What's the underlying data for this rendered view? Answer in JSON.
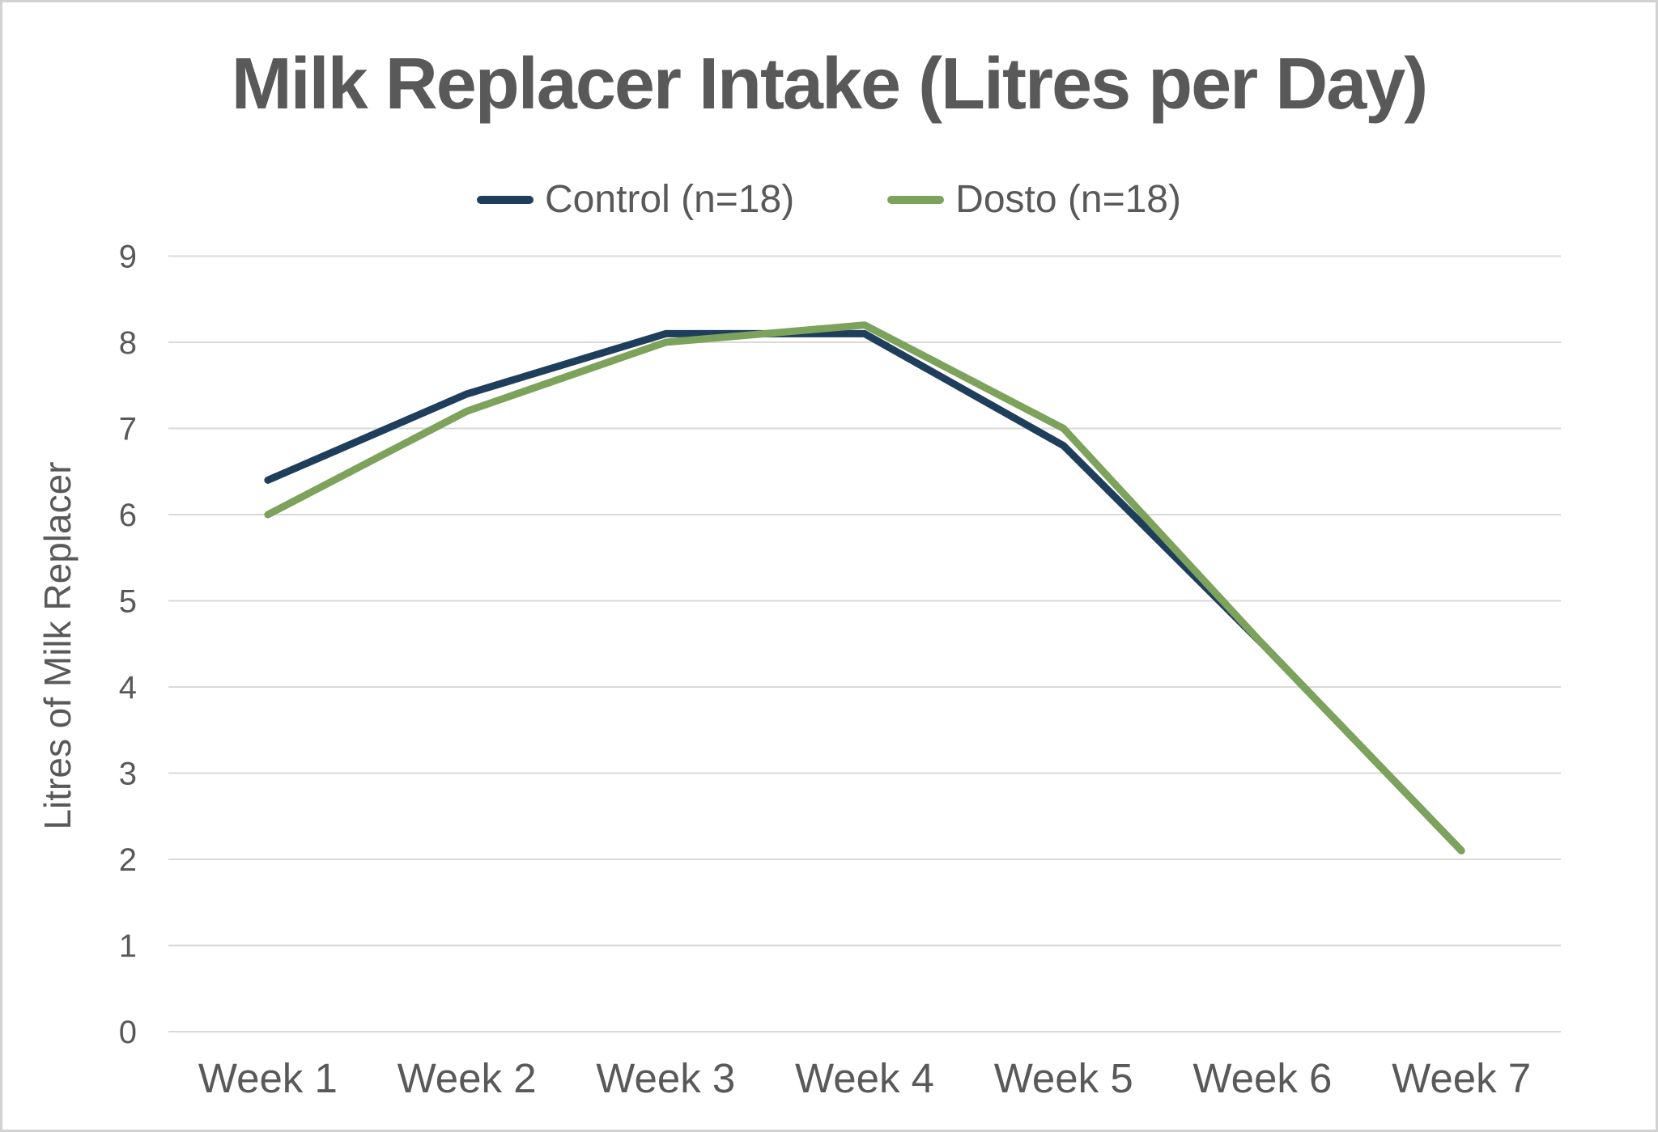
{
  "title": "Milk Replacer Intake (Litres per Day)",
  "colors": {
    "control_line": "#1F3E5C",
    "dosto_line": "#7CA25C",
    "text": "#595959",
    "grid": "#D9D9D9",
    "frame_border": "#D2D2D2",
    "background": "#FFFFFF"
  },
  "legend": {
    "items": [
      "Control (n=18)",
      "Dosto (n=18)"
    ]
  },
  "chart_data": {
    "type": "line",
    "title": "Milk Replacer Intake (Litres per Day)",
    "categories": [
      "Week 1",
      "Week 2",
      "Week 3",
      "Week 4",
      "Week 5",
      "Week 6",
      "Week 7"
    ],
    "series": [
      {
        "name": "Control (n=18)",
        "color": "#1F3E5C",
        "values": [
          6.4,
          7.4,
          8.1,
          8.1,
          6.8,
          4.5,
          2.1
        ]
      },
      {
        "name": "Dosto (n=18)",
        "color": "#7CA25C",
        "values": [
          6.0,
          7.2,
          8.0,
          8.2,
          7.0,
          4.5,
          2.1
        ]
      }
    ],
    "xlabel": "",
    "ylabel": "Litres of Milk Replacer",
    "ylim": [
      0,
      9
    ],
    "yticks": [
      0,
      1,
      2,
      3,
      4,
      5,
      6,
      7,
      8,
      9
    ],
    "grid": "horizontal",
    "legend_position": "top-center",
    "line_width": 9
  }
}
